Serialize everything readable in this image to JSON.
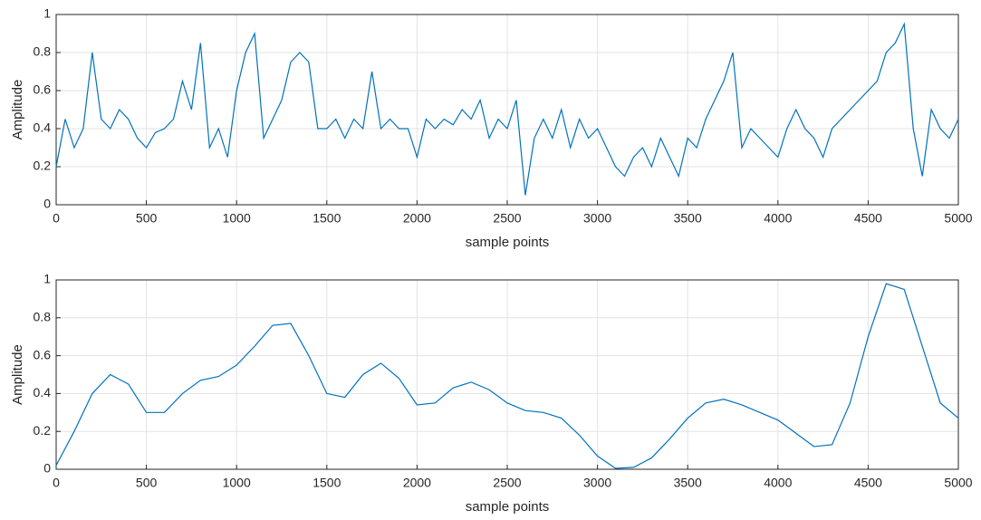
{
  "chart_data": [
    {
      "type": "line",
      "xlabel": "sample points",
      "ylabel": "Amplitude",
      "color": "#0072bd",
      "grid": true,
      "xlim": [
        0,
        5000
      ],
      "ylim": [
        0,
        1
      ],
      "xticks": [
        0,
        500,
        1000,
        1500,
        2000,
        2500,
        3000,
        3500,
        4000,
        4500,
        5000
      ],
      "yticks": [
        0,
        0.2,
        0.4,
        0.6,
        0.8,
        1
      ],
      "x": [
        0,
        50,
        100,
        150,
        200,
        250,
        300,
        350,
        400,
        450,
        500,
        550,
        600,
        650,
        700,
        750,
        800,
        850,
        900,
        950,
        1000,
        1050,
        1100,
        1150,
        1200,
        1250,
        1300,
        1350,
        1400,
        1450,
        1500,
        1550,
        1600,
        1650,
        1700,
        1750,
        1800,
        1850,
        1900,
        1950,
        2000,
        2050,
        2100,
        2150,
        2200,
        2250,
        2300,
        2350,
        2400,
        2450,
        2500,
        2550,
        2600,
        2650,
        2700,
        2750,
        2800,
        2850,
        2900,
        2950,
        3000,
        3050,
        3100,
        3150,
        3200,
        3250,
        3300,
        3350,
        3400,
        3450,
        3500,
        3550,
        3600,
        3650,
        3700,
        3750,
        3800,
        3850,
        3900,
        3950,
        4000,
        4050,
        4100,
        4150,
        4200,
        4250,
        4300,
        4350,
        4400,
        4450,
        4500,
        4550,
        4600,
        4650,
        4700,
        4750,
        4800,
        4850,
        4900,
        4950,
        5000
      ],
      "values": [
        0.2,
        0.45,
        0.3,
        0.4,
        0.8,
        0.45,
        0.4,
        0.5,
        0.45,
        0.35,
        0.3,
        0.38,
        0.4,
        0.45,
        0.65,
        0.5,
        0.85,
        0.3,
        0.4,
        0.25,
        0.6,
        0.8,
        0.9,
        0.35,
        0.45,
        0.55,
        0.75,
        0.8,
        0.75,
        0.4,
        0.4,
        0.45,
        0.35,
        0.45,
        0.4,
        0.7,
        0.4,
        0.45,
        0.4,
        0.4,
        0.25,
        0.45,
        0.4,
        0.45,
        0.42,
        0.5,
        0.45,
        0.55,
        0.35,
        0.45,
        0.4,
        0.55,
        0.05,
        0.35,
        0.45,
        0.35,
        0.5,
        0.3,
        0.45,
        0.35,
        0.4,
        0.3,
        0.2,
        0.15,
        0.25,
        0.3,
        0.2,
        0.35,
        0.25,
        0.15,
        0.35,
        0.3,
        0.45,
        0.55,
        0.65,
        0.8,
        0.3,
        0.4,
        0.35,
        0.3,
        0.25,
        0.4,
        0.5,
        0.4,
        0.35,
        0.25,
        0.4,
        0.45,
        0.5,
        0.55,
        0.6,
        0.65,
        0.8,
        0.85,
        0.95,
        0.4,
        0.15,
        0.5,
        0.4,
        0.35,
        0.45
      ]
    },
    {
      "type": "line",
      "xlabel": "sample points",
      "ylabel": "Amplitude",
      "color": "#0072bd",
      "grid": true,
      "xlim": [
        0,
        5000
      ],
      "ylim": [
        0,
        1
      ],
      "xticks": [
        0,
        500,
        1000,
        1500,
        2000,
        2500,
        3000,
        3500,
        4000,
        4500,
        5000
      ],
      "yticks": [
        0,
        0.2,
        0.4,
        0.6,
        0.8,
        1
      ],
      "x": [
        0,
        100,
        200,
        300,
        400,
        500,
        600,
        700,
        800,
        900,
        1000,
        1100,
        1200,
        1300,
        1400,
        1500,
        1600,
        1700,
        1800,
        1900,
        2000,
        2100,
        2200,
        2300,
        2400,
        2500,
        2600,
        2700,
        2800,
        2900,
        3000,
        3100,
        3200,
        3300,
        3400,
        3500,
        3600,
        3700,
        3800,
        3900,
        4000,
        4100,
        4200,
        4300,
        4400,
        4500,
        4600,
        4700,
        4800,
        4900,
        5000
      ],
      "values": [
        0.02,
        0.2,
        0.4,
        0.5,
        0.45,
        0.3,
        0.3,
        0.4,
        0.47,
        0.49,
        0.55,
        0.65,
        0.76,
        0.77,
        0.6,
        0.4,
        0.38,
        0.5,
        0.56,
        0.48,
        0.34,
        0.35,
        0.43,
        0.46,
        0.42,
        0.35,
        0.31,
        0.3,
        0.27,
        0.18,
        0.07,
        0.005,
        0.01,
        0.06,
        0.16,
        0.27,
        0.35,
        0.37,
        0.34,
        0.3,
        0.26,
        0.19,
        0.12,
        0.13,
        0.35,
        0.7,
        0.98,
        0.95,
        0.65,
        0.35,
        0.27
      ]
    }
  ]
}
